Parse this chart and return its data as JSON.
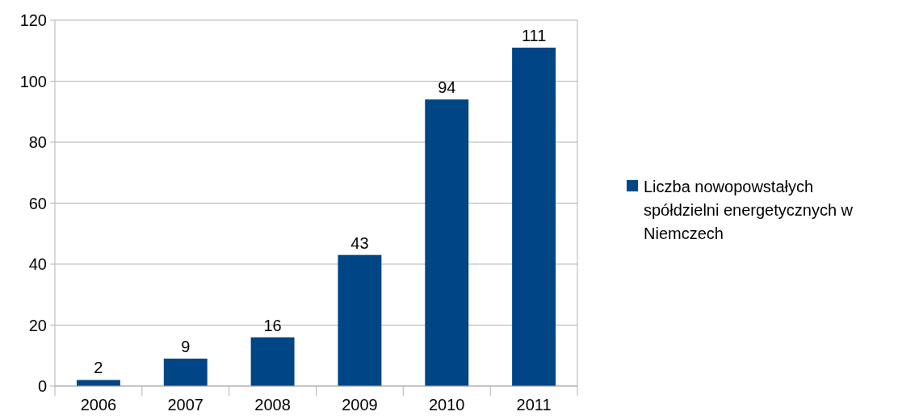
{
  "chart_data": {
    "type": "bar",
    "categories": [
      "2006",
      "2007",
      "2008",
      "2009",
      "2010",
      "2011"
    ],
    "series": [
      {
        "name": "Liczba nowopowstałych spółdzielni energetycznych w Niemczech",
        "color": "#004586",
        "values": [
          2,
          9,
          16,
          43,
          94,
          111
        ]
      }
    ],
    "ylim": [
      0,
      120
    ],
    "yticks": [
      0,
      20,
      40,
      60,
      80,
      100,
      120
    ],
    "grid": "y",
    "legend": "right",
    "data_labels": true
  }
}
